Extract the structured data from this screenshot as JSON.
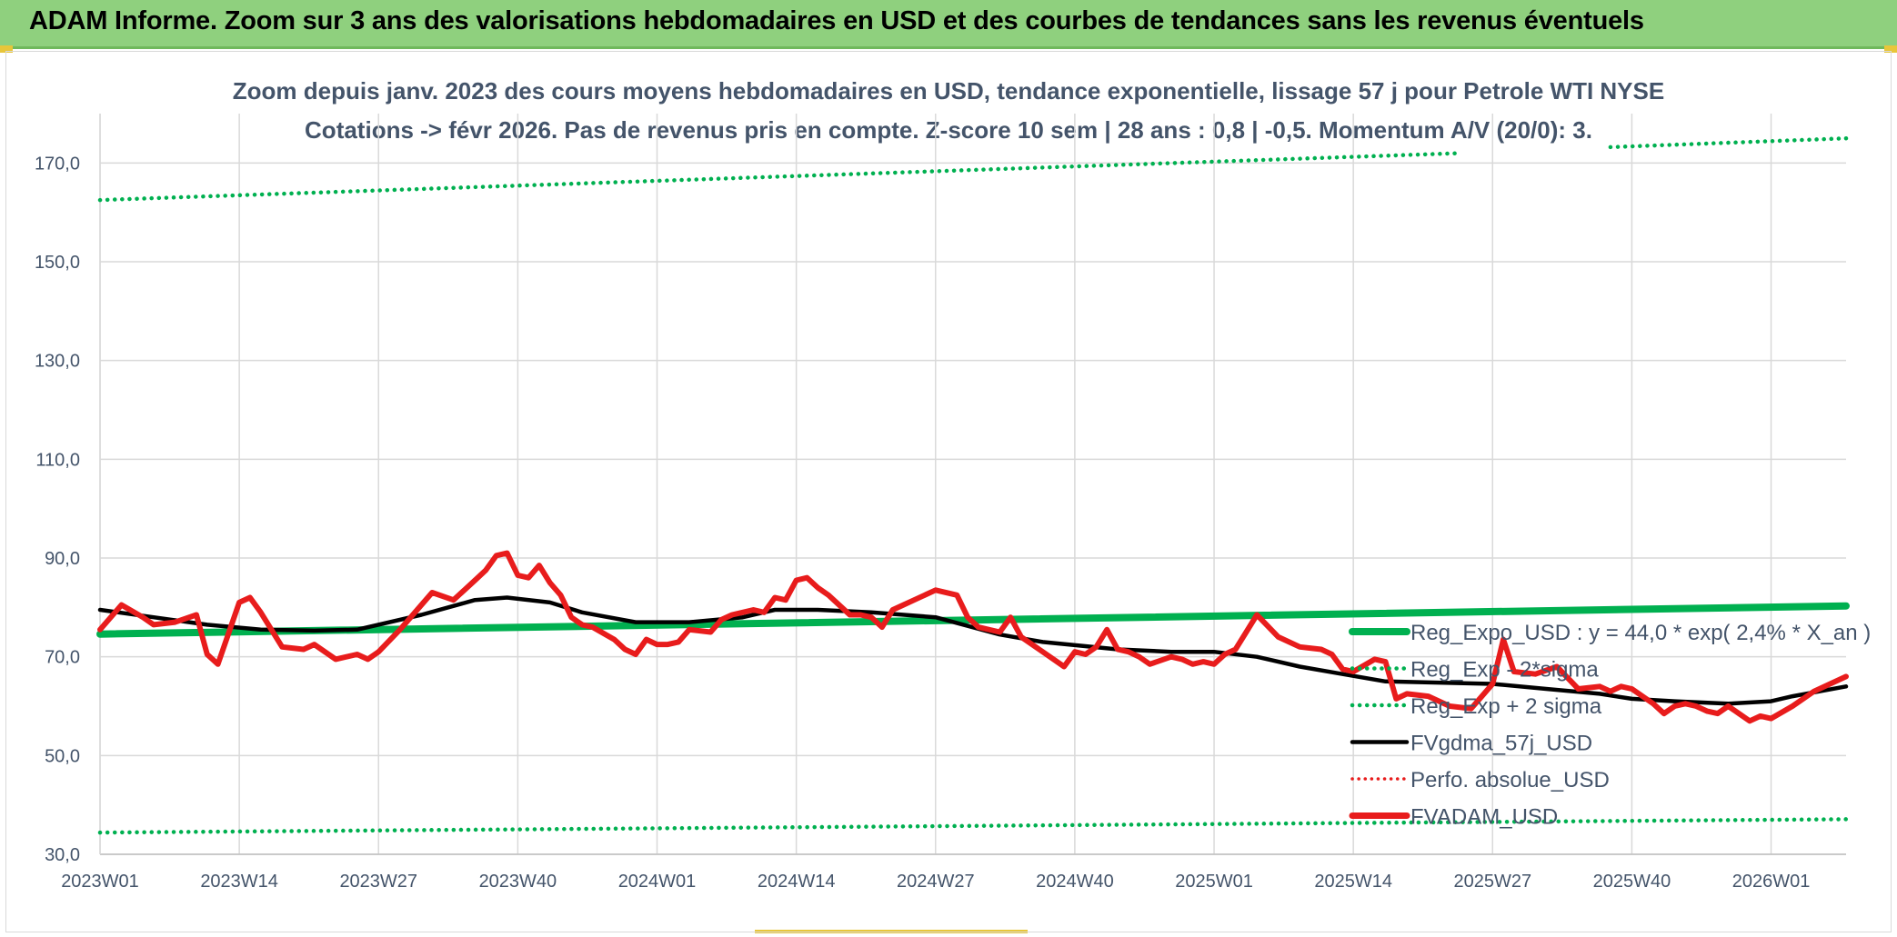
{
  "banner": {
    "title": "ADAM Informe. Zoom sur 3 ans des valorisations hebdomadaires en USD et des courbes de tendances sans les revenus éventuels"
  },
  "chart_data": {
    "type": "line",
    "subtitle_line1": "Zoom depuis janv. 2023 des cours moyens hebdomadaires en USD, tendance exponentielle, lissage 57 j pour Petrole WTI NYSE",
    "subtitle_line2": "Cotations -> févr 2026. Pas de revenus pris en compte. Z-score 10 sem | 28 ans : 0,8 | -0,5. Momentum A/V (20/0): 3.",
    "ylim": [
      30,
      180
    ],
    "yticks": [
      30,
      50,
      70,
      90,
      110,
      130,
      150,
      170
    ],
    "ytick_labels": [
      "30,0",
      "50,0",
      "70,0",
      "90,0",
      "110,0",
      "130,0",
      "150,0",
      "170,0"
    ],
    "xlim": [
      0,
      163
    ],
    "xticks": [
      0,
      13,
      26,
      39,
      52,
      65,
      78,
      91,
      104,
      117,
      130,
      143,
      156
    ],
    "xtick_labels": [
      "2023W01",
      "2023W14",
      "2023W27",
      "2023W40",
      "2024W01",
      "2024W14",
      "2024W27",
      "2024W40",
      "2025W01",
      "2025W14",
      "2025W27",
      "2025W40",
      "2026W01"
    ],
    "grid": true,
    "legend_position": "bottom-right",
    "colors": {
      "reg_expo": "#00b050",
      "band": "#00b050",
      "fvgdma": "#000000",
      "perfo": "#e81c1c",
      "fvadam": "#e81c1c"
    },
    "series": [
      {
        "name": "Reg_Expo_USD : y = 44,0 * exp( 2,4% *  X_an )",
        "style": "thick",
        "x": [
          0,
          163
        ],
        "values": [
          74.6,
          80.3
        ]
      },
      {
        "name": "Reg_Exp - 2*sigma",
        "style": "dotted",
        "x": [
          0,
          163
        ],
        "values": [
          34.4,
          37.1
        ]
      },
      {
        "name": "Reg_Exp + 2 sigma",
        "style": "dotted",
        "x": [
          0,
          127,
          141,
          163
        ],
        "values": [
          162.5,
          172.0,
          173.2,
          175.0
        ]
      },
      {
        "name": "FVgdma_57j_USD",
        "style": "solid",
        "x": [
          0,
          5,
          10,
          15,
          20,
          24,
          30,
          35,
          38,
          42,
          45,
          50,
          55,
          60,
          63,
          67,
          72,
          78,
          84,
          88,
          95,
          100,
          104,
          108,
          112,
          116,
          120,
          130,
          135,
          140,
          143,
          147,
          152,
          156,
          158,
          163
        ],
        "values": [
          79.5,
          78.0,
          76.5,
          75.5,
          75.3,
          75.5,
          78.5,
          81.5,
          82.0,
          81.0,
          79.0,
          77.0,
          77.0,
          78.0,
          79.5,
          79.5,
          79.0,
          78.0,
          74.5,
          73.0,
          71.5,
          71.0,
          71.0,
          70.0,
          68.0,
          66.5,
          65.0,
          64.5,
          63.5,
          62.5,
          61.5,
          61.0,
          60.5,
          61.0,
          62.0,
          64.0
        ]
      },
      {
        "name": "Perfo. absolue_USD",
        "style": "dotted",
        "x": [],
        "values": []
      },
      {
        "name": "FVADAM_USD",
        "style": "thick",
        "x": [
          0,
          2,
          4,
          5,
          7,
          9,
          10,
          11,
          13,
          14,
          15,
          17,
          19,
          20,
          22,
          24,
          25,
          26,
          28,
          30,
          31,
          33,
          35,
          36,
          37,
          38,
          39,
          40,
          41,
          42,
          43,
          44,
          45,
          46,
          48,
          49,
          50,
          51,
          52,
          53,
          54,
          55,
          57,
          58,
          59,
          60,
          61,
          62,
          63,
          64,
          65,
          66,
          67,
          68,
          70,
          71,
          72,
          73,
          74,
          75,
          76,
          78,
          80,
          81,
          82,
          84,
          85,
          86,
          88,
          90,
          91,
          92,
          93,
          94,
          95,
          96,
          97,
          98,
          100,
          101,
          102,
          103,
          104,
          105,
          106,
          107,
          108,
          110,
          112,
          114,
          115,
          116,
          117,
          119,
          120,
          121,
          122,
          124,
          126,
          128,
          129,
          130,
          131,
          132,
          134,
          136,
          138,
          140,
          141,
          142,
          143,
          145,
          146,
          147,
          148,
          149,
          150,
          151,
          152,
          153,
          154,
          155,
          156,
          158,
          160,
          163
        ],
        "values": [
          75.5,
          80.5,
          78.0,
          76.5,
          77.0,
          78.5,
          70.5,
          68.5,
          81.0,
          82.0,
          79.0,
          72.0,
          71.5,
          72.5,
          69.5,
          70.5,
          69.5,
          71.0,
          75.5,
          80.5,
          83.0,
          81.5,
          85.5,
          87.5,
          90.5,
          91.0,
          86.5,
          86.0,
          88.5,
          85.0,
          82.5,
          78.0,
          76.5,
          76.0,
          73.5,
          71.5,
          70.5,
          73.5,
          72.5,
          72.5,
          73.0,
          75.5,
          75.0,
          77.5,
          78.5,
          79.0,
          79.5,
          79.0,
          82.0,
          81.5,
          85.5,
          86.0,
          84.0,
          82.5,
          78.5,
          78.5,
          78.0,
          76.0,
          79.5,
          80.5,
          81.5,
          83.5,
          82.5,
          78.0,
          76.0,
          75.0,
          78.0,
          74.0,
          71.0,
          68.0,
          71.0,
          70.5,
          72.0,
          75.5,
          71.5,
          71.0,
          70.0,
          68.5,
          70.0,
          69.5,
          68.5,
          69.0,
          68.5,
          70.5,
          71.5,
          75.0,
          78.5,
          74.0,
          72.0,
          71.5,
          70.5,
          67.5,
          67.0,
          69.5,
          69.0,
          61.5,
          62.5,
          62.0,
          60.0,
          59.5,
          62.0,
          64.5,
          73.5,
          67.0,
          66.5,
          68.0,
          63.5,
          64.0,
          63.0,
          64.0,
          63.5,
          60.5,
          58.5,
          60.0,
          60.5,
          60.0,
          59.0,
          58.5,
          60.0,
          58.5,
          57.0,
          58.0,
          57.5,
          60.0,
          63.0,
          66.0
        ]
      }
    ]
  }
}
